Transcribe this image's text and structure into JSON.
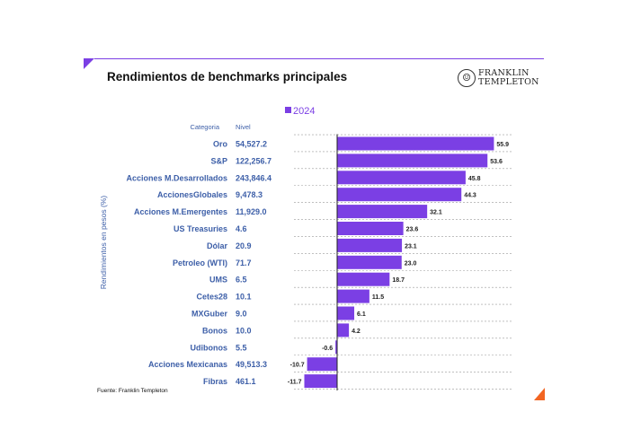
{
  "header": {
    "title": "Rendimientos de benchmarks principales",
    "logo_line1": "FRANKLIN",
    "logo_line2": "TEMPLETON"
  },
  "footer": {
    "source": "Fuente: Franklin Templeton"
  },
  "colors": {
    "bar": "#7b3fe4",
    "accent_orange": "#f26522",
    "label_blue": "#3d5fa8"
  },
  "chart_data": {
    "type": "bar",
    "orientation": "horizontal",
    "legend": {
      "label": "2024",
      "placement": "top"
    },
    "ylabel": "Rendimientos en pesos (%)",
    "column_headers": {
      "category": "Categoria",
      "level": "Nivel"
    },
    "categories": [
      "Oro",
      "S&P",
      "Acciones M.Desarrollados",
      "AccionesGlobales",
      "Acciones M.Emergentes",
      "US Treasuries",
      "Dólar",
      "Petroleo (WTI)",
      "UMS",
      "Cetes28",
      "MXGuber",
      "Bonos",
      "Udibonos",
      "Acciones Mexicanas",
      "Fibras"
    ],
    "levels": [
      "54,527.2",
      "122,256.7",
      "243,846.4",
      "9,478.3",
      "11,929.0",
      "4.6",
      "20.9",
      "71.7",
      "6.5",
      "10.1",
      "9.0",
      "10.0",
      "5.5",
      "49,513.3",
      "461.1"
    ],
    "series": [
      {
        "name": "2024",
        "values": [
          55.9,
          53.6,
          45.8,
          44.3,
          32.1,
          23.6,
          23.1,
          23.0,
          18.7,
          11.5,
          6.1,
          4.2,
          -0.6,
          -10.7,
          -11.7
        ]
      }
    ],
    "grid": "dashed horizontal"
  }
}
